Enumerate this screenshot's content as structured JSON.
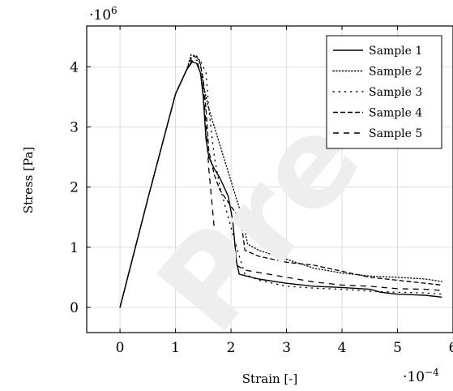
{
  "chart_data": {
    "type": "line",
    "xlabel": "Strain [-]",
    "ylabel": "Stress [Pa]",
    "x_multiplier": "·10−4",
    "y_multiplier": "·106",
    "xlim": [
      -0.6,
      6.0
    ],
    "ylim": [
      -0.42,
      4.68
    ],
    "x_ticks": [
      "0",
      "1",
      "2",
      "3",
      "4",
      "5",
      "6"
    ],
    "y_ticks": [
      "0",
      "1",
      "2",
      "3",
      "4"
    ],
    "grid": true,
    "legend_position": "top-right",
    "watermark": "Pre-",
    "series": [
      {
        "name": "Sample 1",
        "dash": "solid",
        "x": [
          0,
          0.5,
          1.0,
          1.2,
          1.3,
          1.38,
          1.45,
          1.5,
          1.55,
          1.6,
          1.7,
          1.8,
          1.95,
          2.03,
          2.1,
          2.15,
          2.5,
          3.0,
          3.5,
          4.0,
          4.5,
          4.7,
          5.0,
          5.5,
          5.8
        ],
        "y": [
          0,
          1.8,
          3.55,
          3.95,
          4.08,
          4.06,
          3.9,
          3.5,
          2.8,
          2.5,
          2.3,
          2.15,
          1.85,
          1.45,
          0.75,
          0.55,
          0.47,
          0.4,
          0.35,
          0.33,
          0.3,
          0.25,
          0.22,
          0.2,
          0.17
        ]
      },
      {
        "name": "Sample 2",
        "dash": "dotted",
        "x": [
          0,
          0.5,
          1.0,
          1.2,
          1.28,
          1.38,
          1.45,
          1.5,
          1.6,
          1.8,
          2.0,
          2.2,
          2.3,
          2.5,
          3.0,
          3.5,
          4.0,
          4.5,
          5.0,
          5.5,
          5.8
        ],
        "y": [
          0,
          1.8,
          3.55,
          3.95,
          4.2,
          4.18,
          4.05,
          3.7,
          3.3,
          2.7,
          2.1,
          1.5,
          1.05,
          0.95,
          0.8,
          0.65,
          0.57,
          0.52,
          0.5,
          0.47,
          0.43
        ]
      },
      {
        "name": "Sample 3",
        "dash": "loosely-dotted",
        "x": [
          0,
          0.5,
          1.0,
          1.2,
          1.3,
          1.45,
          1.55,
          1.6,
          1.7,
          1.8,
          1.95,
          2.1,
          2.25,
          2.5,
          3.0,
          3.5,
          4.0,
          4.5,
          5.0,
          5.5,
          5.8
        ],
        "y": [
          0,
          1.8,
          3.55,
          3.95,
          4.12,
          4.1,
          3.9,
          3.3,
          2.5,
          2.0,
          1.5,
          1.0,
          0.55,
          0.45,
          0.35,
          0.32,
          0.3,
          0.27,
          0.25,
          0.24,
          0.22
        ]
      },
      {
        "name": "Sample 4",
        "dash": "dashed",
        "x": [
          0,
          0.5,
          1.0,
          1.2,
          1.3,
          1.42,
          1.5,
          1.55,
          1.6,
          1.7,
          1.8,
          1.95,
          2.1,
          2.2,
          2.25,
          2.5,
          3.0,
          3.5,
          4.0,
          4.5,
          5.0,
          5.5,
          5.8
        ],
        "y": [
          0,
          1.8,
          3.55,
          3.95,
          4.18,
          4.15,
          3.8,
          3.3,
          2.6,
          2.2,
          1.95,
          1.75,
          1.55,
          1.3,
          0.95,
          0.85,
          0.75,
          0.7,
          0.6,
          0.5,
          0.45,
          0.4,
          0.37
        ]
      },
      {
        "name": "Sample 5",
        "dash": "loosely-dashed",
        "x": [
          0,
          0.5,
          1.0,
          1.2,
          1.3,
          1.4,
          1.5,
          1.55,
          1.6,
          1.65,
          1.7,
          1.8,
          1.9,
          2.1,
          2.25,
          2.5,
          3.0,
          3.5,
          4.0,
          4.5,
          5.0,
          5.5,
          5.8
        ],
        "y": [
          0,
          1.8,
          3.55,
          3.95,
          4.1,
          4.06,
          3.7,
          3.0,
          2.3,
          1.8,
          1.3,
          1.0,
          0.85,
          0.7,
          0.62,
          0.58,
          0.5,
          0.42,
          0.37,
          0.35,
          0.31,
          0.3,
          0.28
        ]
      }
    ]
  }
}
